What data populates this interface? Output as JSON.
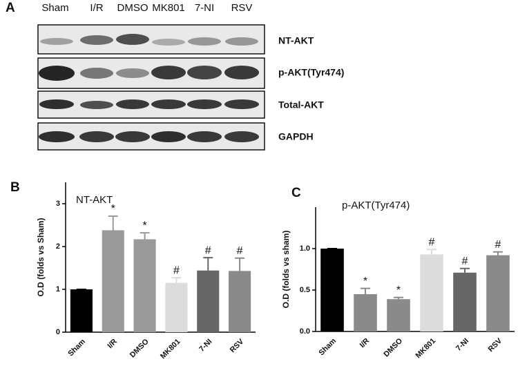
{
  "panel_a": {
    "label": "A",
    "lanes": [
      "Sham",
      "I/R",
      "DMSO",
      "MK801",
      "7-NI",
      "RSV"
    ],
    "rows": [
      "NT-AKT",
      "p-AKT(Tyr474)",
      "Total-AKT",
      "GAPDH"
    ]
  },
  "chart_data": [
    {
      "type": "bar",
      "panel_label": "B",
      "title": "NT-AKT",
      "y_label": "O.D (folds vs Sham)",
      "categories": [
        "Sham",
        "I/R",
        "DMSO",
        "MK801",
        "7-NI",
        "RSV"
      ],
      "values": [
        1,
        2.38,
        2.17,
        1.15,
        1.44,
        1.43
      ],
      "errors": [
        0,
        0.33,
        0.15,
        0.12,
        0.3,
        0.3
      ],
      "annotations": [
        null,
        "*",
        "*",
        "#",
        "#",
        "#"
      ],
      "colors": [
        "#000000",
        "#9a9a9a",
        "#9a9a9a",
        "#dcdcdc",
        "#666666",
        "#8a8a8a"
      ],
      "ylim": [
        0,
        3.5
      ],
      "yticks": [
        0,
        1,
        2,
        3
      ]
    },
    {
      "type": "bar",
      "panel_label": "C",
      "title": "p-AKT(Tyr474)",
      "y_label": "O.D (folds vs sham)",
      "categories": [
        "Sham",
        "I/R",
        "DMSO",
        "MK801",
        "7-NI",
        "RSV"
      ],
      "values": [
        1.0,
        0.45,
        0.39,
        0.93,
        0.71,
        0.92
      ],
      "errors": [
        0,
        0.07,
        0.02,
        0.06,
        0.05,
        0.04
      ],
      "annotations": [
        null,
        "*",
        "*",
        "#",
        "#",
        "#"
      ],
      "colors": [
        "#000000",
        "#8a8a8a",
        "#8a8a8a",
        "#dcdcdc",
        "#666666",
        "#8a8a8a"
      ],
      "ylim": [
        0,
        1.5
      ],
      "yticks": [
        {
          "value": 0,
          "label": "0.0"
        },
        {
          "value": 0.5,
          "label": "0.5"
        },
        {
          "value": 1,
          "label": "1.0"
        }
      ]
    }
  ]
}
